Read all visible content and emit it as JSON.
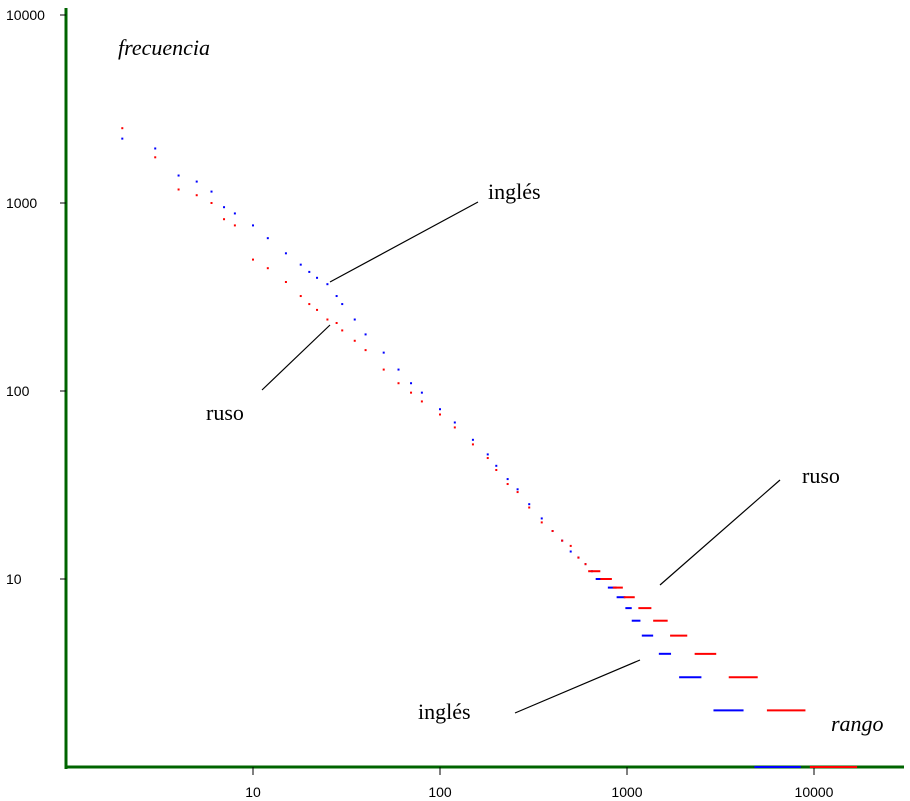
{
  "chart_data": {
    "type": "scatter",
    "title": "",
    "xlabel": "rango",
    "ylabel": "frecuencia",
    "x_scale": "log",
    "y_scale": "log",
    "xlim": [
      1,
      20000
    ],
    "ylim": [
      1,
      10000
    ],
    "grid": false,
    "legend": "none",
    "x_tick_labels": [
      "10",
      "100",
      "1000",
      "10000"
    ],
    "x_tick_values": [
      10,
      100,
      1000,
      10000
    ],
    "y_tick_labels": [
      "10",
      "100",
      "1000",
      "10000"
    ],
    "y_tick_values": [
      10,
      100,
      1000,
      10000
    ],
    "series": [
      {
        "name": "inglés",
        "color": "#0000ff",
        "points": [
          [
            2,
            2200
          ],
          [
            3,
            1950
          ],
          [
            4,
            1400
          ],
          [
            5,
            1300
          ],
          [
            6,
            1150
          ],
          [
            7,
            950
          ],
          [
            8,
            880
          ],
          [
            10,
            760
          ],
          [
            12,
            650
          ],
          [
            15,
            540
          ],
          [
            18,
            470
          ],
          [
            20,
            430
          ],
          [
            22,
            400
          ],
          [
            25,
            370
          ],
          [
            28,
            320
          ],
          [
            30,
            290
          ],
          [
            35,
            240
          ],
          [
            40,
            200
          ],
          [
            50,
            160
          ],
          [
            60,
            130
          ],
          [
            70,
            110
          ],
          [
            80,
            98
          ],
          [
            100,
            80
          ],
          [
            120,
            68
          ],
          [
            150,
            55
          ],
          [
            180,
            46
          ],
          [
            200,
            40
          ],
          [
            230,
            34
          ],
          [
            260,
            30
          ],
          [
            300,
            25
          ],
          [
            350,
            21
          ],
          [
            400,
            18
          ],
          [
            450,
            16
          ],
          [
            500,
            14
          ],
          [
            550,
            13
          ],
          [
            600,
            12
          ],
          [
            650,
            11
          ]
        ],
        "steps": [
          {
            "value": 10,
            "x_from": 680,
            "x_to": 780
          },
          {
            "value": 9,
            "x_from": 790,
            "x_to": 880
          },
          {
            "value": 8,
            "x_from": 880,
            "x_to": 980
          },
          {
            "value": 7,
            "x_from": 980,
            "x_to": 1060
          },
          {
            "value": 6,
            "x_from": 1060,
            "x_to": 1180
          },
          {
            "value": 5,
            "x_from": 1200,
            "x_to": 1380
          },
          {
            "value": 4,
            "x_from": 1480,
            "x_to": 1720
          },
          {
            "value": 3,
            "x_from": 1900,
            "x_to": 2500
          },
          {
            "value": 2,
            "x_from": 2900,
            "x_to": 4200
          },
          {
            "value": 1,
            "x_from": 4800,
            "x_to": 8500
          }
        ]
      },
      {
        "name": "ruso",
        "color": "#ff0000",
        "points": [
          [
            2,
            2500
          ],
          [
            3,
            1750
          ],
          [
            4,
            1180
          ],
          [
            5,
            1100
          ],
          [
            6,
            1000
          ],
          [
            7,
            820
          ],
          [
            8,
            760
          ],
          [
            10,
            500
          ],
          [
            12,
            450
          ],
          [
            15,
            380
          ],
          [
            18,
            320
          ],
          [
            20,
            290
          ],
          [
            22,
            270
          ],
          [
            25,
            240
          ],
          [
            28,
            230
          ],
          [
            30,
            210
          ],
          [
            35,
            185
          ],
          [
            40,
            165
          ],
          [
            50,
            130
          ],
          [
            60,
            110
          ],
          [
            70,
            98
          ],
          [
            80,
            88
          ],
          [
            100,
            75
          ],
          [
            120,
            64
          ],
          [
            150,
            52
          ],
          [
            180,
            44
          ],
          [
            200,
            38
          ],
          [
            230,
            32
          ],
          [
            260,
            29
          ],
          [
            300,
            24
          ],
          [
            350,
            20
          ],
          [
            400,
            18
          ],
          [
            450,
            16
          ],
          [
            500,
            15
          ],
          [
            550,
            13
          ],
          [
            600,
            12
          ]
        ],
        "steps": [
          {
            "value": 11,
            "x_from": 620,
            "x_to": 720
          },
          {
            "value": 10,
            "x_from": 720,
            "x_to": 830
          },
          {
            "value": 9,
            "x_from": 840,
            "x_to": 950
          },
          {
            "value": 8,
            "x_from": 960,
            "x_to": 1100
          },
          {
            "value": 7,
            "x_from": 1150,
            "x_to": 1350
          },
          {
            "value": 6,
            "x_from": 1380,
            "x_to": 1650
          },
          {
            "value": 5,
            "x_from": 1700,
            "x_to": 2100
          },
          {
            "value": 4,
            "x_from": 2300,
            "x_to": 3000
          },
          {
            "value": 3,
            "x_from": 3500,
            "x_to": 5000
          },
          {
            "value": 2,
            "x_from": 5600,
            "x_to": 9000
          },
          {
            "value": 1,
            "x_from": 9500,
            "x_to": 17000
          }
        ]
      }
    ],
    "annotations": [
      {
        "text": "inglés",
        "series": "inglés",
        "near": "upper"
      },
      {
        "text": "ruso",
        "series": "ruso",
        "near": "upper"
      },
      {
        "text": "ruso",
        "series": "ruso",
        "near": "lower"
      },
      {
        "text": "inglés",
        "series": "inglés",
        "near": "lower"
      }
    ]
  }
}
